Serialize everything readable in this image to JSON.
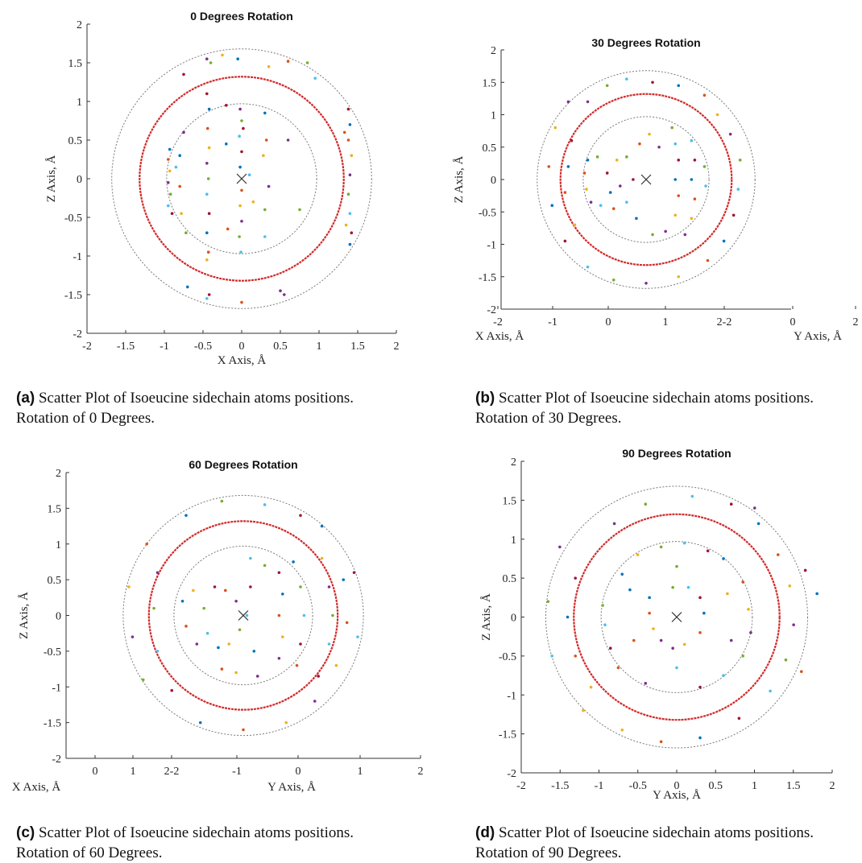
{
  "panels": [
    {
      "caption_label": "(a)",
      "caption_line1": "Scatter Plot of Isoeucine sidechain atoms positions.",
      "caption_line2": "Rotation of 0 Degrees.",
      "title": "0 Degrees Rotation",
      "xlabel": "X Axis, Å",
      "ylabel": "Z Axis, Å",
      "x_ticks": [
        "-2",
        "-1.5",
        "-1",
        "-0.5",
        "0",
        "0.5",
        "1",
        "1.5",
        "2"
      ],
      "y_ticks": [
        "-2",
        "-1.5",
        "-1",
        "-0.5",
        "0",
        "0.5",
        "1",
        "1.5",
        "2"
      ]
    },
    {
      "caption_label": "(b)",
      "caption_line1": "Scatter Plot of Isoeucine sidechain atoms positions.",
      "caption_line2": "Rotation of 30 Degrees.",
      "title": "30 Degrees Rotation",
      "xlabel_left": "X Axis, Å",
      "xlabel_right": "Y Axis, Å",
      "ylabel": "Z Axis, Å",
      "x_ticks": [
        "-2",
        "-1",
        "0",
        "1",
        "2-2",
        "0",
        "2"
      ],
      "y_ticks": [
        "-2",
        "-1.5",
        "-1",
        "-0.5",
        "0",
        "0.5",
        "1",
        "1.5",
        "2"
      ]
    },
    {
      "caption_label": "(c)",
      "caption_line1": "Scatter Plot of Isoeucine sidechain atoms positions.",
      "caption_line2": "Rotation of 60 Degrees.",
      "title": "60 Degrees Rotation",
      "xlabel_left": "X Axis, Å",
      "xlabel_right": "Y Axis, Å",
      "ylabel": "Z Axis, Å",
      "x_ticks": [
        "0",
        "1",
        "2-2",
        "-1",
        "0",
        "1",
        "2"
      ],
      "y_ticks": [
        "-2",
        "-1.5",
        "-1",
        "-0.5",
        "0",
        "0.5",
        "1",
        "1.5",
        "2"
      ]
    },
    {
      "caption_label": "(d)",
      "caption_line1": "Scatter Plot of Isoeucine sidechain atoms positions.",
      "caption_line2": "Rotation of 90 Degrees.",
      "title": "90 Degrees Rotation",
      "xlabel": "Y Axis, Å",
      "ylabel": "Z Axis, Å",
      "x_ticks": [
        "-2",
        "-1.5",
        "-1",
        "-0.5",
        "0",
        "0.5",
        "1",
        "1.5",
        "2"
      ],
      "y_ticks": [
        "-2",
        "-1.5",
        "-1",
        "-0.5",
        "0",
        "0.5",
        "1",
        "1.5",
        "2"
      ]
    }
  ],
  "chart_data": [
    {
      "type": "scatter",
      "title": "0 Degrees Rotation",
      "xlabel": "X Axis, Å",
      "ylabel": "Z Axis, Å",
      "xlim": [
        -2,
        2
      ],
      "ylim": [
        -2,
        2
      ],
      "grid": false,
      "reference_circles": [
        {
          "radius": 0.97,
          "color": "#7a7a7a"
        },
        {
          "radius": 1.32,
          "color": "#d22a2a"
        },
        {
          "radius": 1.68,
          "color": "#7a7a7a"
        }
      ],
      "center_marker": {
        "x": 0,
        "y": 0,
        "symbol": "x"
      },
      "points": [
        [
          -0.93,
          0.38
        ],
        [
          -0.95,
          0.25
        ],
        [
          -0.93,
          0.1
        ],
        [
          -0.95,
          -0.05
        ],
        [
          -0.92,
          -0.2
        ],
        [
          -0.95,
          -0.35
        ],
        [
          -0.9,
          -0.45
        ],
        [
          -0.8,
          0.3
        ],
        [
          -0.8,
          -0.1
        ],
        [
          -0.78,
          -0.45
        ],
        [
          -0.75,
          0.6
        ],
        [
          -0.72,
          -0.7
        ],
        [
          -0.85,
          0.15
        ],
        [
          -0.45,
          1.1
        ],
        [
          -0.42,
          0.9
        ],
        [
          -0.44,
          0.65
        ],
        [
          -0.42,
          0.4
        ],
        [
          -0.45,
          0.2
        ],
        [
          -0.43,
          0.0
        ],
        [
          -0.45,
          -0.2
        ],
        [
          -0.42,
          -0.45
        ],
        [
          -0.45,
          -0.7
        ],
        [
          -0.43,
          -0.95
        ],
        [
          -0.45,
          -1.05
        ],
        [
          -0.02,
          0.9
        ],
        [
          0.0,
          0.75
        ],
        [
          -0.03,
          0.55
        ],
        [
          0.0,
          0.35
        ],
        [
          -0.02,
          0.15
        ],
        [
          0.0,
          -0.15
        ],
        [
          -0.02,
          -0.35
        ],
        [
          0.0,
          -0.55
        ],
        [
          -0.03,
          -0.75
        ],
        [
          -0.01,
          -0.95
        ],
        [
          0.02,
          0.65
        ],
        [
          0.3,
          0.85
        ],
        [
          0.32,
          0.5
        ],
        [
          0.28,
          0.3
        ],
        [
          0.35,
          -0.1
        ],
        [
          0.3,
          -0.4
        ],
        [
          0.3,
          -0.75
        ],
        [
          -0.2,
          0.95
        ],
        [
          -0.2,
          0.45
        ],
        [
          -0.18,
          -0.65
        ],
        [
          0.15,
          -0.3
        ],
        [
          0.6,
          0.5
        ],
        [
          0.75,
          -0.4
        ],
        [
          0.1,
          0.05
        ],
        [
          1.38,
          0.9
        ],
        [
          1.4,
          0.7
        ],
        [
          1.38,
          0.5
        ],
        [
          1.42,
          0.3
        ],
        [
          1.4,
          0.05
        ],
        [
          1.38,
          -0.2
        ],
        [
          1.4,
          -0.45
        ],
        [
          1.42,
          -0.7
        ],
        [
          1.4,
          -0.85
        ],
        [
          1.33,
          0.6
        ],
        [
          1.35,
          -0.6
        ],
        [
          -0.45,
          1.55
        ],
        [
          -0.4,
          1.5
        ],
        [
          -0.45,
          -1.55
        ],
        [
          -0.42,
          -1.5
        ],
        [
          -0.05,
          1.55
        ],
        [
          0.0,
          -1.6
        ],
        [
          0.35,
          1.45
        ],
        [
          0.55,
          -1.5
        ],
        [
          0.85,
          1.5
        ],
        [
          0.95,
          1.3
        ],
        [
          -0.75,
          1.35
        ],
        [
          -0.7,
          -1.4
        ],
        [
          0.6,
          1.52
        ],
        [
          -0.25,
          1.6
        ],
        [
          0.5,
          -1.45
        ]
      ]
    },
    {
      "type": "scatter",
      "title": "30 Degrees Rotation",
      "xlabel": "X Axis, Å / Y Axis, Å",
      "ylabel": "Z Axis, Å",
      "ylim": [
        -2,
        2
      ],
      "grid": false,
      "reference_circles": [
        {
          "radius": 0.97,
          "color": "#7a7a7a"
        },
        {
          "radius": 1.32,
          "color": "#d22a2a"
        },
        {
          "radius": 1.68,
          "color": "#7a7a7a"
        }
      ],
      "center_marker": {
        "x": 0,
        "y": 0,
        "symbol": "x"
      },
      "points": [
        [
          -0.9,
          0.3
        ],
        [
          -0.95,
          0.1
        ],
        [
          -0.92,
          -0.15
        ],
        [
          -0.85,
          -0.35
        ],
        [
          -0.75,
          0.35
        ],
        [
          -0.7,
          -0.4
        ],
        [
          -0.6,
          0.1
        ],
        [
          -0.55,
          -0.2
        ],
        [
          -0.5,
          -0.45
        ],
        [
          -0.45,
          0.3
        ],
        [
          -0.4,
          -0.1
        ],
        [
          -0.3,
          0.35
        ],
        [
          -0.3,
          -0.35
        ],
        [
          -0.2,
          0.0
        ],
        [
          -0.15,
          -0.6
        ],
        [
          -0.1,
          0.55
        ],
        [
          0.05,
          0.7
        ],
        [
          0.2,
          0.5
        ],
        [
          0.4,
          0.8
        ],
        [
          0.45,
          0.55
        ],
        [
          0.5,
          0.3
        ],
        [
          0.45,
          0.0
        ],
        [
          0.5,
          -0.25
        ],
        [
          0.45,
          -0.55
        ],
        [
          0.3,
          -0.8
        ],
        [
          0.1,
          -0.85
        ],
        [
          0.7,
          0.6
        ],
        [
          0.75,
          0.3
        ],
        [
          0.7,
          0.0
        ],
        [
          0.75,
          -0.3
        ],
        [
          0.7,
          -0.6
        ],
        [
          0.6,
          -0.85
        ],
        [
          0.9,
          0.2
        ],
        [
          0.92,
          -0.1
        ],
        [
          -1.15,
          0.6
        ],
        [
          -1.2,
          0.2
        ],
        [
          -1.25,
          -0.2
        ],
        [
          -1.1,
          -0.7
        ],
        [
          -0.9,
          1.2
        ],
        [
          -0.6,
          1.45
        ],
        [
          -0.3,
          1.55
        ],
        [
          0.1,
          1.5
        ],
        [
          0.5,
          1.45
        ],
        [
          0.9,
          1.3
        ],
        [
          1.1,
          1.0
        ],
        [
          1.3,
          0.7
        ],
        [
          1.45,
          0.3
        ],
        [
          1.42,
          -0.15
        ],
        [
          1.35,
          -0.55
        ],
        [
          1.2,
          -0.95
        ],
        [
          0.95,
          -1.25
        ],
        [
          0.5,
          -1.5
        ],
        [
          0.0,
          -1.6
        ],
        [
          -0.5,
          -1.55
        ],
        [
          -0.9,
          -1.35
        ],
        [
          -1.25,
          -0.95
        ],
        [
          -1.45,
          -0.4
        ],
        [
          -1.5,
          0.2
        ],
        [
          -1.4,
          0.8
        ],
        [
          -1.2,
          1.2
        ]
      ]
    },
    {
      "type": "scatter",
      "title": "60 Degrees Rotation",
      "xlabel": "X Axis, Å / Y Axis, Å",
      "ylabel": "Z Axis, Å",
      "ylim": [
        -2,
        2
      ],
      "grid": false,
      "reference_circles": [
        {
          "radius": 0.97,
          "color": "#7a7a7a"
        },
        {
          "radius": 1.32,
          "color": "#d22a2a"
        },
        {
          "radius": 1.68,
          "color": "#7a7a7a"
        }
      ],
      "center_marker": {
        "x": 0,
        "y": 0,
        "symbol": "x"
      },
      "points": [
        [
          -0.85,
          0.2
        ],
        [
          -0.8,
          -0.15
        ],
        [
          -0.7,
          0.35
        ],
        [
          -0.65,
          -0.4
        ],
        [
          -0.55,
          0.1
        ],
        [
          -0.5,
          -0.25
        ],
        [
          -0.4,
          0.4
        ],
        [
          -0.35,
          -0.45
        ],
        [
          -0.25,
          0.35
        ],
        [
          -0.2,
          -0.4
        ],
        [
          -0.1,
          0.2
        ],
        [
          -0.05,
          -0.2
        ],
        [
          0.05,
          0.0
        ],
        [
          0.1,
          0.4
        ],
        [
          0.15,
          -0.5
        ],
        [
          -0.3,
          -0.75
        ],
        [
          -0.1,
          -0.8
        ],
        [
          0.2,
          -0.85
        ],
        [
          0.3,
          0.7
        ],
        [
          0.1,
          0.8
        ],
        [
          0.5,
          0.6
        ],
        [
          0.55,
          0.3
        ],
        [
          0.5,
          0.0
        ],
        [
          0.55,
          -0.3
        ],
        [
          0.5,
          -0.6
        ],
        [
          0.8,
          0.4
        ],
        [
          0.85,
          0.0
        ],
        [
          0.8,
          -0.4
        ],
        [
          0.7,
          0.75
        ],
        [
          0.75,
          -0.7
        ],
        [
          1.1,
          0.8
        ],
        [
          1.2,
          0.4
        ],
        [
          1.25,
          0.0
        ],
        [
          1.2,
          -0.4
        ],
        [
          1.05,
          -0.85
        ],
        [
          1.4,
          0.5
        ],
        [
          1.45,
          -0.1
        ],
        [
          1.3,
          -0.7
        ],
        [
          -1.2,
          0.6
        ],
        [
          -1.25,
          0.1
        ],
        [
          -1.2,
          -0.5
        ],
        [
          -1.0,
          -1.05
        ],
        [
          -0.6,
          -1.5
        ],
        [
          0.0,
          -1.6
        ],
        [
          0.6,
          -1.5
        ],
        [
          1.0,
          -1.2
        ],
        [
          -0.3,
          1.6
        ],
        [
          0.3,
          1.55
        ],
        [
          0.8,
          1.4
        ],
        [
          -0.8,
          1.4
        ],
        [
          -1.35,
          1.0
        ],
        [
          -1.6,
          0.4
        ],
        [
          -1.55,
          -0.3
        ],
        [
          -1.4,
          -0.9
        ],
        [
          1.6,
          -0.3
        ],
        [
          1.55,
          0.6
        ],
        [
          1.1,
          1.25
        ]
      ]
    },
    {
      "type": "scatter",
      "title": "90 Degrees Rotation",
      "xlabel": "Y Axis, Å",
      "ylabel": "Z Axis, Å",
      "xlim": [
        -2,
        2
      ],
      "ylim": [
        -2,
        2
      ],
      "grid": false,
      "reference_circles": [
        {
          "radius": 0.97,
          "color": "#7a7a7a"
        },
        {
          "radius": 1.32,
          "color": "#d22a2a"
        },
        {
          "radius": 1.68,
          "color": "#7a7a7a"
        }
      ],
      "center_marker": {
        "x": 0,
        "y": 0,
        "symbol": "x"
      },
      "points": [
        [
          -0.35,
          0.25
        ],
        [
          -0.35,
          0.05
        ],
        [
          -0.3,
          -0.15
        ],
        [
          -0.2,
          -0.3
        ],
        [
          -0.05,
          0.38
        ],
        [
          0.15,
          0.38
        ],
        [
          0.3,
          0.25
        ],
        [
          0.35,
          0.05
        ],
        [
          0.3,
          -0.2
        ],
        [
          0.1,
          -0.35
        ],
        [
          -0.05,
          -0.4
        ],
        [
          -0.95,
          0.15
        ],
        [
          -0.92,
          -0.1
        ],
        [
          -0.85,
          -0.4
        ],
        [
          -0.7,
          0.55
        ],
        [
          -0.75,
          -0.65
        ],
        [
          -0.5,
          0.8
        ],
        [
          -0.4,
          -0.85
        ],
        [
          -0.2,
          0.9
        ],
        [
          0.1,
          0.95
        ],
        [
          0.4,
          0.85
        ],
        [
          0.6,
          0.75
        ],
        [
          0.85,
          0.45
        ],
        [
          0.92,
          0.1
        ],
        [
          0.95,
          -0.2
        ],
        [
          0.85,
          -0.5
        ],
        [
          0.6,
          -0.75
        ],
        [
          0.3,
          -0.9
        ],
        [
          -0.6,
          0.35
        ],
        [
          -0.55,
          -0.3
        ],
        [
          0.65,
          0.3
        ],
        [
          0.7,
          -0.3
        ],
        [
          0.0,
          0.65
        ],
        [
          0.0,
          -0.65
        ],
        [
          -1.3,
          0.5
        ],
        [
          -1.4,
          0.0
        ],
        [
          -1.3,
          -0.5
        ],
        [
          -1.1,
          -0.9
        ],
        [
          -0.8,
          1.2
        ],
        [
          -0.4,
          1.45
        ],
        [
          0.2,
          1.55
        ],
        [
          0.7,
          1.45
        ],
        [
          1.05,
          1.2
        ],
        [
          1.3,
          0.8
        ],
        [
          1.45,
          0.4
        ],
        [
          1.5,
          -0.1
        ],
        [
          1.4,
          -0.55
        ],
        [
          1.2,
          -0.95
        ],
        [
          0.8,
          -1.3
        ],
        [
          0.3,
          -1.55
        ],
        [
          -0.2,
          -1.6
        ],
        [
          -0.7,
          -1.45
        ],
        [
          -1.5,
          0.9
        ],
        [
          -1.65,
          0.2
        ],
        [
          -1.6,
          -0.5
        ],
        [
          1.65,
          0.6
        ],
        [
          1.8,
          0.3
        ],
        [
          1.6,
          -0.7
        ],
        [
          -1.2,
          -1.2
        ],
        [
          1.0,
          1.4
        ]
      ]
    }
  ]
}
